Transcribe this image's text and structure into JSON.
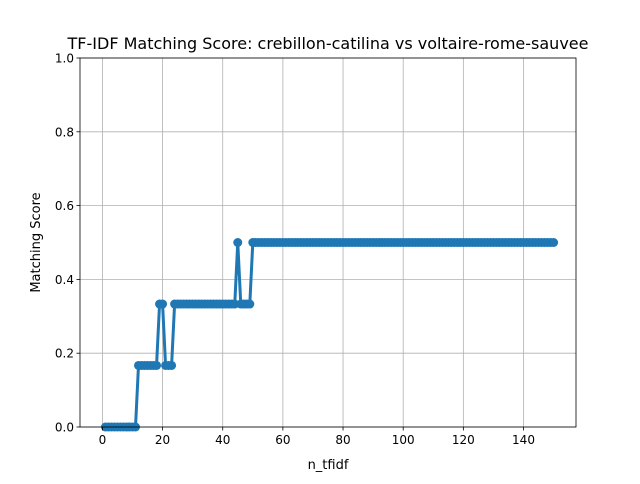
{
  "chart_data": {
    "type": "line",
    "title": "TF-IDF Matching Score: crebillon-catilina vs voltaire-rome-sauvee",
    "xlabel": "n_tfidf",
    "ylabel": "Matching Score",
    "xlim": [
      -7.45,
      157.45
    ],
    "ylim": [
      0,
      1.0
    ],
    "xticks": [
      0,
      20,
      40,
      60,
      80,
      100,
      120,
      140
    ],
    "yticks": [
      0.0,
      0.2,
      0.4,
      0.6,
      0.8,
      1.0
    ],
    "xtick_labels": [
      "0",
      "20",
      "40",
      "60",
      "80",
      "100",
      "120",
      "140"
    ],
    "ytick_labels": [
      "0.0",
      "0.2",
      "0.4",
      "0.6",
      "0.8",
      "1.0"
    ],
    "grid": true,
    "marker": "circle",
    "color": "#1f77b4",
    "series": [
      {
        "x": [
          1,
          2,
          3,
          4,
          5,
          6,
          7,
          8,
          9,
          10,
          11,
          12,
          13,
          14,
          15,
          16,
          17,
          18,
          19,
          20,
          21,
          22,
          23,
          24,
          25,
          26,
          27,
          28,
          29,
          30,
          31,
          32,
          33,
          34,
          35,
          36,
          37,
          38,
          39,
          40,
          41,
          42,
          43,
          44,
          45,
          46,
          47,
          48,
          49,
          50,
          51,
          52,
          53,
          54,
          55,
          56,
          57,
          58,
          59,
          60,
          61,
          62,
          63,
          64,
          65,
          66,
          67,
          68,
          69,
          70,
          71,
          72,
          73,
          74,
          75,
          76,
          77,
          78,
          79,
          80,
          81,
          82,
          83,
          84,
          85,
          86,
          87,
          88,
          89,
          90,
          91,
          92,
          93,
          94,
          95,
          96,
          97,
          98,
          99,
          100,
          101,
          102,
          103,
          104,
          105,
          106,
          107,
          108,
          109,
          110,
          111,
          112,
          113,
          114,
          115,
          116,
          117,
          118,
          119,
          120,
          121,
          122,
          123,
          124,
          125,
          126,
          127,
          128,
          129,
          130,
          131,
          132,
          133,
          134,
          135,
          136,
          137,
          138,
          139,
          140,
          141,
          142,
          143,
          144,
          145,
          146,
          147,
          148,
          149,
          150
        ],
        "values": [
          0,
          0,
          0,
          0,
          0,
          0,
          0,
          0,
          0,
          0,
          0,
          0.1667,
          0.1667,
          0.1667,
          0.1667,
          0.1667,
          0.1667,
          0.1667,
          0.3333,
          0.3333,
          0.1667,
          0.1667,
          0.1667,
          0.3333,
          0.3333,
          0.3333,
          0.3333,
          0.3333,
          0.3333,
          0.3333,
          0.3333,
          0.3333,
          0.3333,
          0.3333,
          0.3333,
          0.3333,
          0.3333,
          0.3333,
          0.3333,
          0.3333,
          0.3333,
          0.3333,
          0.3333,
          0.3333,
          0.5,
          0.3333,
          0.3333,
          0.3333,
          0.3333,
          0.5,
          0.5,
          0.5,
          0.5,
          0.5,
          0.5,
          0.5,
          0.5,
          0.5,
          0.5,
          0.5,
          0.5,
          0.5,
          0.5,
          0.5,
          0.5,
          0.5,
          0.5,
          0.5,
          0.5,
          0.5,
          0.5,
          0.5,
          0.5,
          0.5,
          0.5,
          0.5,
          0.5,
          0.5,
          0.5,
          0.5,
          0.5,
          0.5,
          0.5,
          0.5,
          0.5,
          0.5,
          0.5,
          0.5,
          0.5,
          0.5,
          0.5,
          0.5,
          0.5,
          0.5,
          0.5,
          0.5,
          0.5,
          0.5,
          0.5,
          0.5,
          0.5,
          0.5,
          0.5,
          0.5,
          0.5,
          0.5,
          0.5,
          0.5,
          0.5,
          0.5,
          0.5,
          0.5,
          0.5,
          0.5,
          0.5,
          0.5,
          0.5,
          0.5,
          0.5,
          0.5,
          0.5,
          0.5,
          0.5,
          0.5,
          0.5,
          0.5,
          0.5,
          0.5,
          0.5,
          0.5,
          0.5,
          0.5,
          0.5,
          0.5,
          0.5,
          0.5,
          0.5,
          0.5,
          0.5,
          0.5,
          0.5,
          0.5,
          0.5,
          0.5,
          0.5,
          0.5,
          0.5,
          0.5,
          0.5,
          0.5
        ]
      }
    ]
  }
}
